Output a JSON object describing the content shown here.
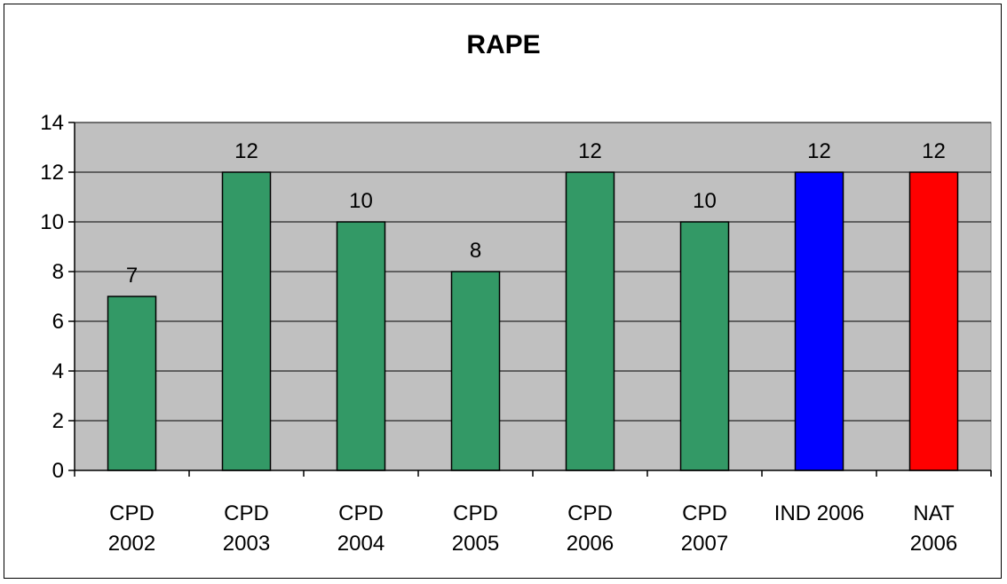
{
  "chart_data": {
    "type": "bar",
    "title": "RAPE",
    "categories": [
      [
        "CPD",
        "2002"
      ],
      [
        "CPD",
        "2003"
      ],
      [
        "CPD",
        "2004"
      ],
      [
        "CPD",
        "2005"
      ],
      [
        "CPD",
        "2006"
      ],
      [
        "CPD",
        "2007"
      ],
      [
        "IND 2006"
      ],
      [
        "NAT",
        "2006"
      ]
    ],
    "values": [
      7,
      12,
      10,
      8,
      12,
      10,
      12,
      12
    ],
    "data_labels": [
      "7",
      "12",
      "10",
      "8",
      "12",
      "10",
      "12",
      "12"
    ],
    "bar_colors": [
      "#339966",
      "#339966",
      "#339966",
      "#339966",
      "#339966",
      "#339966",
      "#0000ff",
      "#ff0000"
    ],
    "ylim": [
      0,
      14
    ],
    "yticks": [
      0,
      2,
      4,
      6,
      8,
      10,
      12,
      14
    ],
    "plot_background": "#c0c0c0",
    "grid": true,
    "legend": "none"
  }
}
